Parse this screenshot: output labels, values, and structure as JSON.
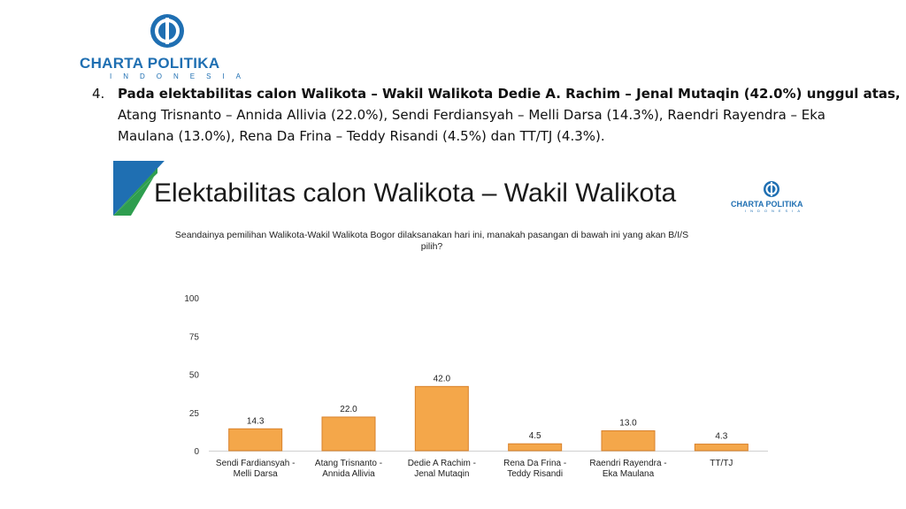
{
  "header": {
    "logo_name": "CHARTA POLITIKA",
    "logo_sub": "INDONESIA"
  },
  "paragraph": {
    "number": "4.",
    "bold_line": "Pada elektabilitas calon Walikota – Wakil Walikota Dedie A. Rachim – Jenal Mutaqin (42.0%) unggul atas,",
    "line2": "Atang Trisnanto – Annida Allivia (22.0%), Sendi Ferdiansyah – Melli Darsa (14.3%), Raendri Rayendra – Eka",
    "line3": "Maulana (13.0%), Rena Da Frina – Teddy Risandi (4.5%) dan TT/TJ (4.3%)."
  },
  "slide": {
    "title": "Elektabilitas calon Walikota – Wakil Walikota",
    "logo_name": "CHARTA POLITIKA",
    "logo_sub": "INDONESIA",
    "question_line1": "Seandainya pemilihan Walikota-Wakil Walikota Bogor dilaksanakan hari ini, manakah pasangan di bawah ini yang akan B/I/S",
    "question_line2": "pilih?"
  },
  "colors": {
    "brand_blue": "#1f6fb2",
    "brand_green": "#2e9e4f",
    "bar_fill": "#f4a74a",
    "bar_stroke": "#d9822b"
  },
  "chart_data": {
    "type": "bar",
    "categories": [
      [
        "Sendi Fardiansyah -",
        "Melli Darsa"
      ],
      [
        "Atang Trisnanto -",
        "Annida Allivia"
      ],
      [
        "Dedie A Rachim -",
        "Jenal Mutaqin"
      ],
      [
        "Rena Da Frina -",
        "Teddy Risandi"
      ],
      [
        "Raendri Rayendra -",
        "Eka Maulana"
      ],
      [
        "TT/TJ"
      ]
    ],
    "values": [
      14.3,
      22.0,
      42.0,
      4.5,
      13.0,
      4.3
    ],
    "value_labels": [
      "14.3",
      "22.0",
      "42.0",
      "4.5",
      "13.0",
      "4.3"
    ],
    "y_ticks": [
      0,
      25,
      50,
      75,
      100
    ],
    "ylim": [
      0,
      100
    ],
    "grid": false,
    "legend": "none"
  }
}
